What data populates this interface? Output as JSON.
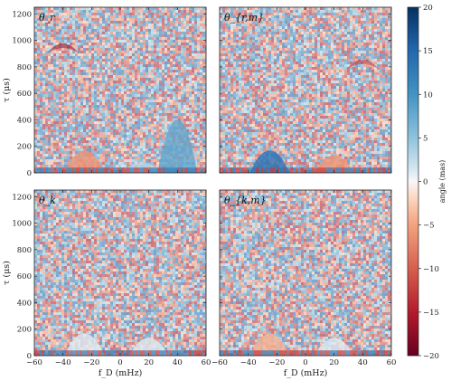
{
  "chart_data": [
    {
      "type": "heatmap",
      "panel_label": "θ_r",
      "xlabel": "",
      "ylabel": "τ (μs)",
      "xlim": [
        -60,
        60
      ],
      "ylim": [
        0,
        1250
      ],
      "xticks": [
        -60,
        -40,
        -20,
        0,
        20,
        40,
        60
      ],
      "yticks": [
        0,
        200,
        400,
        600,
        800,
        1000,
        1200
      ],
      "features": [
        {
          "x_center": -40,
          "tau": 970,
          "value_deg": -17,
          "note": "left arc head"
        },
        {
          "x_center": -25,
          "tau": 250,
          "value_deg": -6,
          "note": "left main parabola"
        },
        {
          "x_center": 15,
          "tau": 120,
          "value_deg": 3,
          "note": "right main parabola"
        },
        {
          "x_center": 40,
          "tau": 600,
          "value_deg": 8,
          "note": "right faint arm"
        }
      ]
    },
    {
      "type": "heatmap",
      "panel_label": "θ_{r,m}",
      "xlabel": "",
      "ylabel": "",
      "xlim": [
        -60,
        60
      ],
      "ylim": [
        0,
        1250
      ],
      "xticks": [
        -60,
        -40,
        -20,
        0,
        20,
        40,
        60
      ],
      "yticks": [
        0,
        200,
        400,
        600,
        800,
        1000,
        1200
      ],
      "features": [
        {
          "x_center": -40,
          "tau": 970,
          "value_deg": 7,
          "note": "left arc head"
        },
        {
          "x_center": -25,
          "tau": 250,
          "value_deg": 14,
          "note": "left main parabola"
        },
        {
          "x_center": 20,
          "tau": 200,
          "value_deg": -6,
          "note": "right main parabola"
        },
        {
          "x_center": 40,
          "tau": 850,
          "value_deg": -13,
          "note": "right arc head"
        }
      ]
    },
    {
      "type": "heatmap",
      "panel_label": "θ_k",
      "xlabel": "f_D (mHz)",
      "ylabel": "τ (μs)",
      "xlim": [
        -60,
        60
      ],
      "ylim": [
        0,
        1250
      ],
      "xticks": [
        -60,
        -40,
        -20,
        0,
        20,
        40,
        60
      ],
      "yticks": [
        0,
        200,
        400,
        600,
        800,
        1000,
        1200
      ],
      "features": [
        {
          "x_center": -40,
          "tau": 970,
          "value_deg": -3,
          "note": "left arc head"
        },
        {
          "x_center": -25,
          "tau": 250,
          "value_deg": 1,
          "note": "left main parabola"
        },
        {
          "x_center": 20,
          "tau": 200,
          "value_deg": 1,
          "note": "right main parabola"
        }
      ]
    },
    {
      "type": "heatmap",
      "panel_label": "θ_{k,m}",
      "xlabel": "f_D (mHz)",
      "ylabel": "",
      "xlim": [
        -60,
        60
      ],
      "ylim": [
        0,
        1250
      ],
      "xticks": [
        -60,
        -40,
        -20,
        0,
        20,
        40,
        60
      ],
      "yticks": [
        0,
        200,
        400,
        600,
        800,
        1000,
        1200
      ],
      "features": [
        {
          "x_center": -40,
          "tau": 970,
          "value_deg": -2,
          "note": "left arc head"
        },
        {
          "x_center": -25,
          "tau": 250,
          "value_deg": -4,
          "note": "left main parabola"
        },
        {
          "x_center": 20,
          "tau": 200,
          "value_deg": 1,
          "note": "right main parabola"
        }
      ]
    }
  ],
  "colorbar": {
    "label": "angle (mas)",
    "min": -20,
    "max": 20,
    "ticks": [
      -20,
      -15,
      -10,
      -5,
      0,
      5,
      10,
      15,
      20
    ],
    "colormap": "RdBu",
    "colors": {
      "low": "#67001f",
      "mid": "#f7f7f7",
      "high": "#053061"
    }
  }
}
